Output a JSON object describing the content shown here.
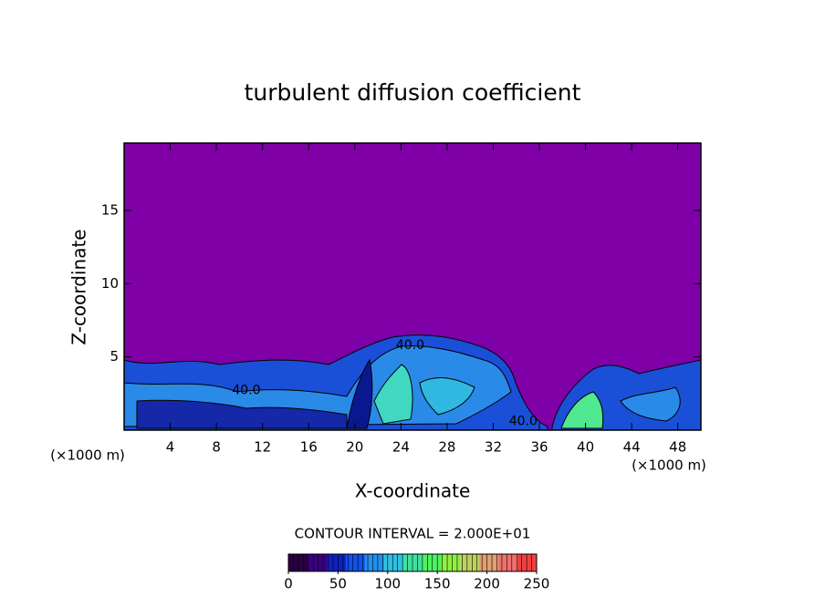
{
  "chart_data": {
    "type": "contour",
    "title": "turbulent diffusion coefficient",
    "x_label": "X-coordinate",
    "y_label": "Z-coordinate",
    "x_unit_label_left": "(×1000 m)",
    "x_unit_label_right": "(×1000 m)",
    "xlim": [
      0,
      50
    ],
    "xticks": [
      4,
      8,
      12,
      16,
      20,
      24,
      28,
      32,
      36,
      40,
      44,
      48
    ],
    "ylim": [
      0,
      19.6
    ],
    "yticks": [
      5,
      10,
      15
    ],
    "background_color": "#7e00a6",
    "contour_labels": [
      {
        "text": "40.0",
        "x": 24.8,
        "y": 5.8
      },
      {
        "text": "40.0",
        "x": 10.6,
        "y": 2.7
      },
      {
        "text": "40.0",
        "x": 34.6,
        "y": 0.6
      }
    ],
    "contour_interval_label": "CONTOUR INTERVAL = 2.000E+01",
    "colorbar": {
      "lim": [
        0,
        250
      ],
      "ticks": [
        0,
        50,
        100,
        150,
        200,
        250
      ],
      "colors": [
        "#2a0040",
        "#3a0080",
        "#1020c0",
        "#1050f0",
        "#2090f0",
        "#30c0e0",
        "#40e0a0",
        "#50f060",
        "#90f040",
        "#c0d060",
        "#e0a070",
        "#f07070",
        "#f04040"
      ]
    }
  }
}
